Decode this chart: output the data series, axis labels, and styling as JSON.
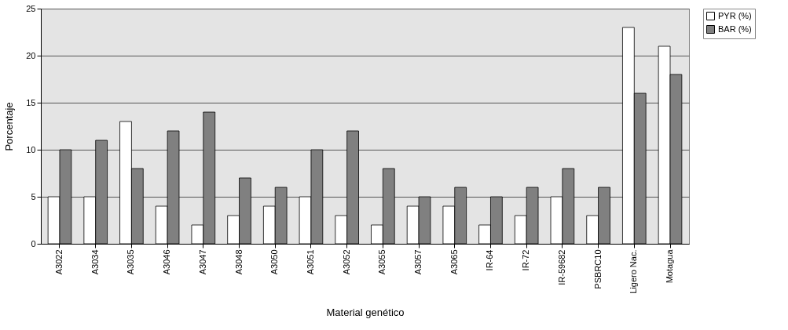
{
  "chart_data": {
    "type": "bar",
    "xlabel": "Material genético",
    "ylabel": "Porcentaje",
    "categories": [
      "A3022",
      "A3034",
      "A3035",
      "A3046",
      "A3047",
      "A3048",
      "A3050",
      "A3051",
      "A3052",
      "A3055",
      "A3057",
      "A3065",
      "IR-64",
      "IR-72",
      "IR-59682",
      "PSBRC10",
      "Ligero Nac.",
      "Motagua"
    ],
    "series": [
      {
        "name": "PYR (%)",
        "color": "#ffffff",
        "values": [
          5,
          5,
          13,
          4,
          2,
          3,
          4,
          5,
          3,
          2,
          4,
          4,
          2,
          3,
          5,
          3,
          23,
          21
        ]
      },
      {
        "name": "BAR (%)",
        "color": "#808080",
        "values": [
          10,
          11,
          8,
          12,
          14,
          7,
          6,
          10,
          12,
          8,
          5,
          6,
          5,
          6,
          8,
          6,
          16,
          18
        ]
      }
    ],
    "ylim": [
      0,
      25
    ],
    "yticks": [
      0,
      5,
      10,
      15,
      20,
      25
    ],
    "grid": "y",
    "legend": "top right"
  }
}
